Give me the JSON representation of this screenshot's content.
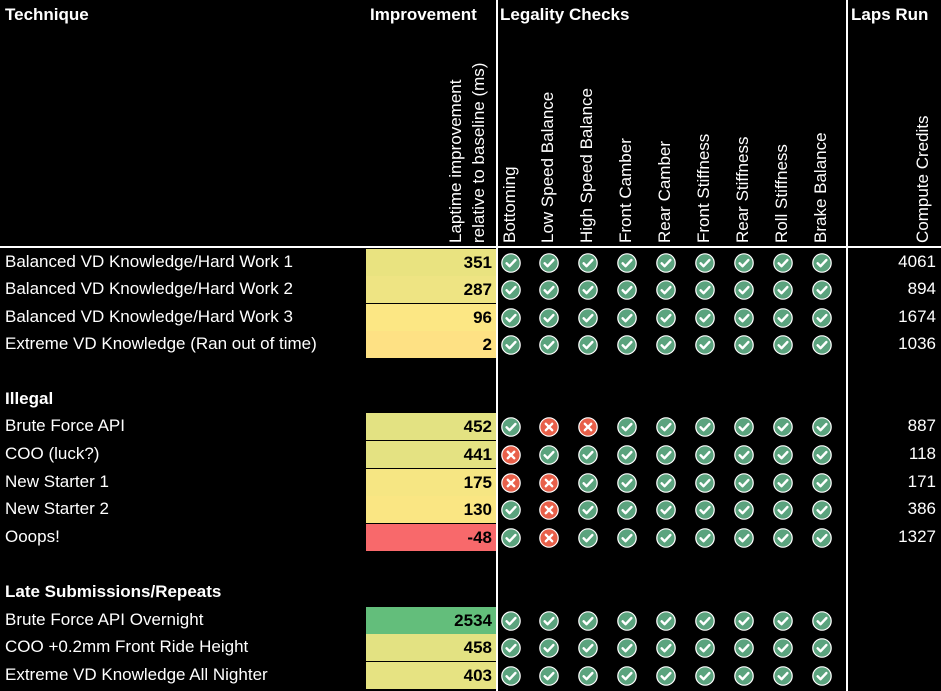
{
  "headers": {
    "technique": "Technique",
    "improvement": "Improvement",
    "legality": "Legality Checks",
    "laps": "Laps Run"
  },
  "columns": {
    "improvement_line1": "Laptime improvement",
    "improvement_line2": "relative to baseline (ms)",
    "checks": [
      "Bottoming",
      "Low Speed Balance",
      "High Speed Balance",
      "Front Camber",
      "Rear Camber",
      "Front Stiffness",
      "Rear Stiffness",
      "Roll Stiffness",
      "Brake Balance"
    ],
    "credits": "Compute Credits"
  },
  "rows": [
    {
      "type": "data",
      "name": "Balanced VD Knowledge/Hard Work 1",
      "improvement": "351",
      "color": "#E9E380",
      "checks": [
        "pass",
        "pass",
        "pass",
        "pass",
        "pass",
        "pass",
        "pass",
        "pass",
        "pass"
      ],
      "credits": "4061"
    },
    {
      "type": "data",
      "name": "Balanced VD Knowledge/Hard Work 2",
      "improvement": "287",
      "color": "#EEE483",
      "checks": [
        "pass",
        "pass",
        "pass",
        "pass",
        "pass",
        "pass",
        "pass",
        "pass",
        "pass"
      ],
      "credits": "894"
    },
    {
      "type": "data",
      "name": "Balanced VD Knowledge/Hard Work 3",
      "improvement": "96",
      "color": "#FCE784",
      "checks": [
        "pass",
        "pass",
        "pass",
        "pass",
        "pass",
        "pass",
        "pass",
        "pass",
        "pass"
      ],
      "credits": "1674"
    },
    {
      "type": "data",
      "name": "Extreme VD Knowledge (Ran out of time)",
      "improvement": "2",
      "color": "#FEE184",
      "checks": [
        "pass",
        "pass",
        "pass",
        "pass",
        "pass",
        "pass",
        "pass",
        "pass",
        "pass"
      ],
      "credits": "1036"
    },
    {
      "type": "blank"
    },
    {
      "type": "section",
      "name": "Illegal"
    },
    {
      "type": "data",
      "name": "Brute Force API",
      "improvement": "452",
      "color": "#E3E282",
      "checks": [
        "pass",
        "fail",
        "fail",
        "pass",
        "pass",
        "pass",
        "pass",
        "pass",
        "pass"
      ],
      "credits": "887"
    },
    {
      "type": "data",
      "name": "COO (luck?)",
      "improvement": "441",
      "color": "#E4E282",
      "checks": [
        "fail",
        "pass",
        "pass",
        "pass",
        "pass",
        "pass",
        "pass",
        "pass",
        "pass"
      ],
      "credits": "118"
    },
    {
      "type": "data",
      "name": "New Starter 1",
      "improvement": "175",
      "color": "#F6E683",
      "checks": [
        "fail",
        "fail",
        "pass",
        "pass",
        "pass",
        "pass",
        "pass",
        "pass",
        "pass"
      ],
      "credits": "171"
    },
    {
      "type": "data",
      "name": "New Starter 2",
      "improvement": "130",
      "color": "#FAE683",
      "checks": [
        "pass",
        "fail",
        "pass",
        "pass",
        "pass",
        "pass",
        "pass",
        "pass",
        "pass"
      ],
      "credits": "386"
    },
    {
      "type": "data",
      "name": "Ooops!",
      "improvement": "-48",
      "color": "#F8696B",
      "checks": [
        "pass",
        "fail",
        "pass",
        "pass",
        "pass",
        "pass",
        "pass",
        "pass",
        "pass"
      ],
      "credits": "1327"
    },
    {
      "type": "blank"
    },
    {
      "type": "section",
      "name": "Late Submissions/Repeats"
    },
    {
      "type": "data",
      "name": "Brute Force API Overnight",
      "improvement": "2534",
      "color": "#63BE7B",
      "checks": [
        "pass",
        "pass",
        "pass",
        "pass",
        "pass",
        "pass",
        "pass",
        "pass",
        "pass"
      ],
      "credits": ""
    },
    {
      "type": "data",
      "name": "COO +0.2mm Front Ride Height",
      "improvement": "458",
      "color": "#E3E282",
      "checks": [
        "pass",
        "pass",
        "pass",
        "pass",
        "pass",
        "pass",
        "pass",
        "pass",
        "pass"
      ],
      "credits": ""
    },
    {
      "type": "data",
      "name": "Extreme VD Knowledge All Nighter",
      "improvement": "403",
      "color": "#E6E382",
      "checks": [
        "pass",
        "pass",
        "pass",
        "pass",
        "pass",
        "pass",
        "pass",
        "pass",
        "pass"
      ],
      "credits": ""
    }
  ],
  "status_colors": {
    "pass": "#5BA37E",
    "fail": "#E8604A"
  },
  "icons": {
    "pass": "check-circle-icon",
    "fail": "cross-circle-icon"
  }
}
